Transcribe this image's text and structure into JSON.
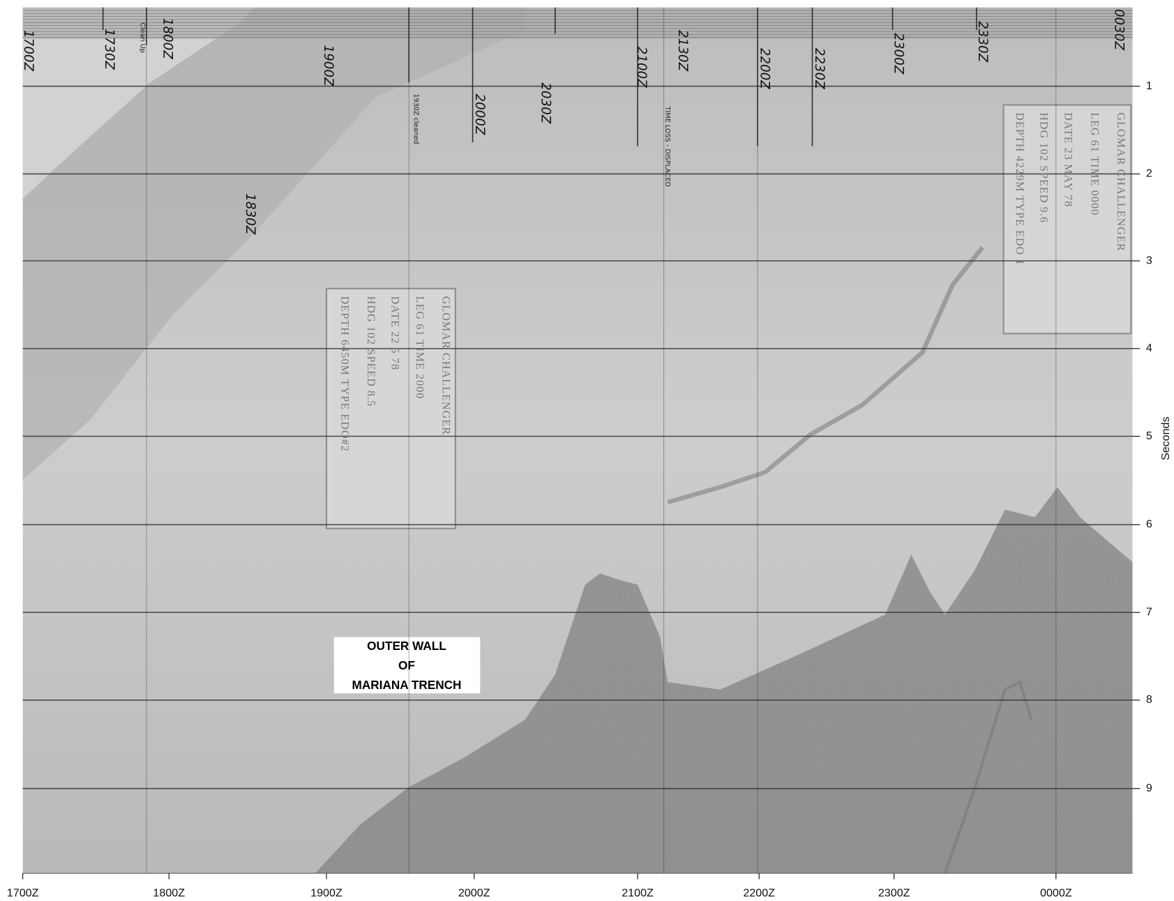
{
  "x_axis": {
    "labels": [
      "1700Z",
      "1800Z",
      "1900Z",
      "2000Z",
      "2100Z",
      "2200Z",
      "2300Z",
      "0000Z"
    ]
  },
  "y_axis": {
    "title": "Seconds",
    "ticks": [
      "1",
      "2",
      "3",
      "4",
      "5",
      "6",
      "7",
      "8",
      "9"
    ]
  },
  "annotation": {
    "lines": [
      "OUTER WALL",
      "OF",
      "MARIANA TRENCH"
    ]
  },
  "handwritten_labels": [
    "1700Z",
    "1730Z",
    "Clean Up",
    "1800Z",
    "1830Z",
    "1900Z",
    "1930Z cleaned",
    "2000Z",
    "2030Z",
    "2100Z",
    "2130Z",
    "TIME LOSS - DISPLACED",
    "2200Z",
    "2230Z",
    "2300Z",
    "2330Z",
    "0030Z"
  ],
  "stamps": [
    {
      "lines": [
        "GLOMAR CHALLENGER",
        "LEG 61   TIME 2000",
        "DATE 22 5 78",
        "HDG 102   SPEED 8.5",
        "DEPTH 6450M   TYPE EDO#2"
      ]
    },
    {
      "lines": [
        "GLOMAR CHALLENGER",
        "LEG 61   TIME 0000",
        "DATE 23 MAY 78",
        "HDG 102   SPEED 9.6",
        "DEPTH 4229M   TYPE EDO 1"
      ]
    }
  ]
}
